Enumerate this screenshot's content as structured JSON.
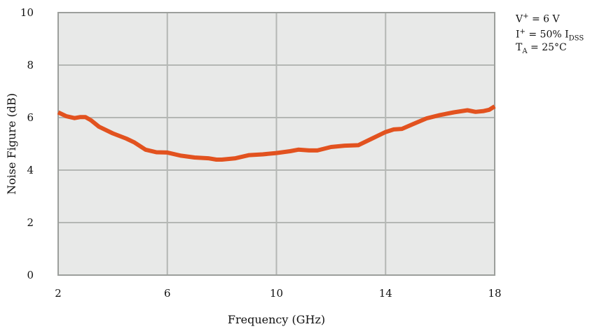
{
  "colors": {
    "plot_background": "#e8e9e8",
    "grid": "#b4b7b4",
    "frame": "#9c9f9c",
    "curve": "#e2521f"
  },
  "conditions": {
    "vplus": {
      "sym": "V",
      "sup": "+",
      "rest": " = 6 V"
    },
    "iplus": {
      "sym": "I",
      "sup": "+",
      "mid": " = 50% I",
      "sub": "DSS"
    },
    "ta": {
      "sym": "T",
      "sub": "A",
      "rest": " = 25°C"
    }
  },
  "chart_data": {
    "type": "line",
    "title": "",
    "xlabel": "Frequency (GHz)",
    "ylabel": "Noise Figure (dB)",
    "xlim": [
      2,
      18
    ],
    "ylim": [
      0,
      10
    ],
    "xticks": [
      2,
      6,
      10,
      14,
      18
    ],
    "yticks": [
      0,
      2,
      4,
      6,
      8,
      10
    ],
    "grid": true,
    "legend": "none",
    "series": [
      {
        "x": [
          2.0,
          2.3,
          2.6,
          2.8,
          3.0,
          3.2,
          3.5,
          4.0,
          4.5,
          4.8,
          5.2,
          5.6,
          6.0,
          6.5,
          7.0,
          7.5,
          7.8,
          8.0,
          8.5,
          9.0,
          9.5,
          10.0,
          10.5,
          10.8,
          11.2,
          11.5,
          12.0,
          12.5,
          13.0,
          13.5,
          14.0,
          14.3,
          14.6,
          15.0,
          15.5,
          16.0,
          16.5,
          17.0,
          17.3,
          17.6,
          17.8,
          18.0
        ],
        "y": [
          6.2,
          6.05,
          5.98,
          6.02,
          6.02,
          5.9,
          5.65,
          5.4,
          5.2,
          5.05,
          4.78,
          4.68,
          4.67,
          4.55,
          4.48,
          4.45,
          4.4,
          4.4,
          4.45,
          4.57,
          4.6,
          4.65,
          4.72,
          4.78,
          4.75,
          4.75,
          4.88,
          4.93,
          4.95,
          5.2,
          5.45,
          5.55,
          5.57,
          5.75,
          5.97,
          6.1,
          6.2,
          6.28,
          6.22,
          6.25,
          6.3,
          6.43
        ]
      }
    ]
  }
}
